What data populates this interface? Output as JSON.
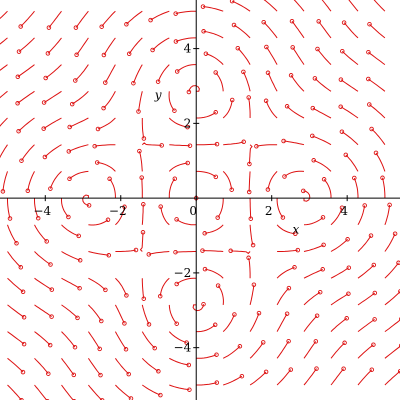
{
  "chart_data": {
    "type": "vector-field",
    "title": "",
    "xlabel": "x",
    "ylabel": "y",
    "xlim": [
      -5.2,
      5.4
    ],
    "ylim": [
      -5.4,
      5.3
    ],
    "x_ticks": [
      -4,
      -2,
      0,
      2,
      4
    ],
    "y_ticks": [
      -4,
      -2,
      2,
      4
    ],
    "x_tick_labels": [
      "−4",
      "−2",
      "0",
      "2",
      "4"
    ],
    "y_tick_labels": [
      "−4",
      "−2",
      "2",
      "4"
    ],
    "grid": false,
    "arrow_color": "#dd1111",
    "centers": [
      [
        -3.0,
        0.0
      ],
      [
        3.0,
        0.0
      ],
      [
        0.0,
        3.0
      ],
      [
        0.0,
        -3.0
      ]
    ],
    "sample_range": [
      -5,
      5
    ],
    "sample_count": 15
  }
}
